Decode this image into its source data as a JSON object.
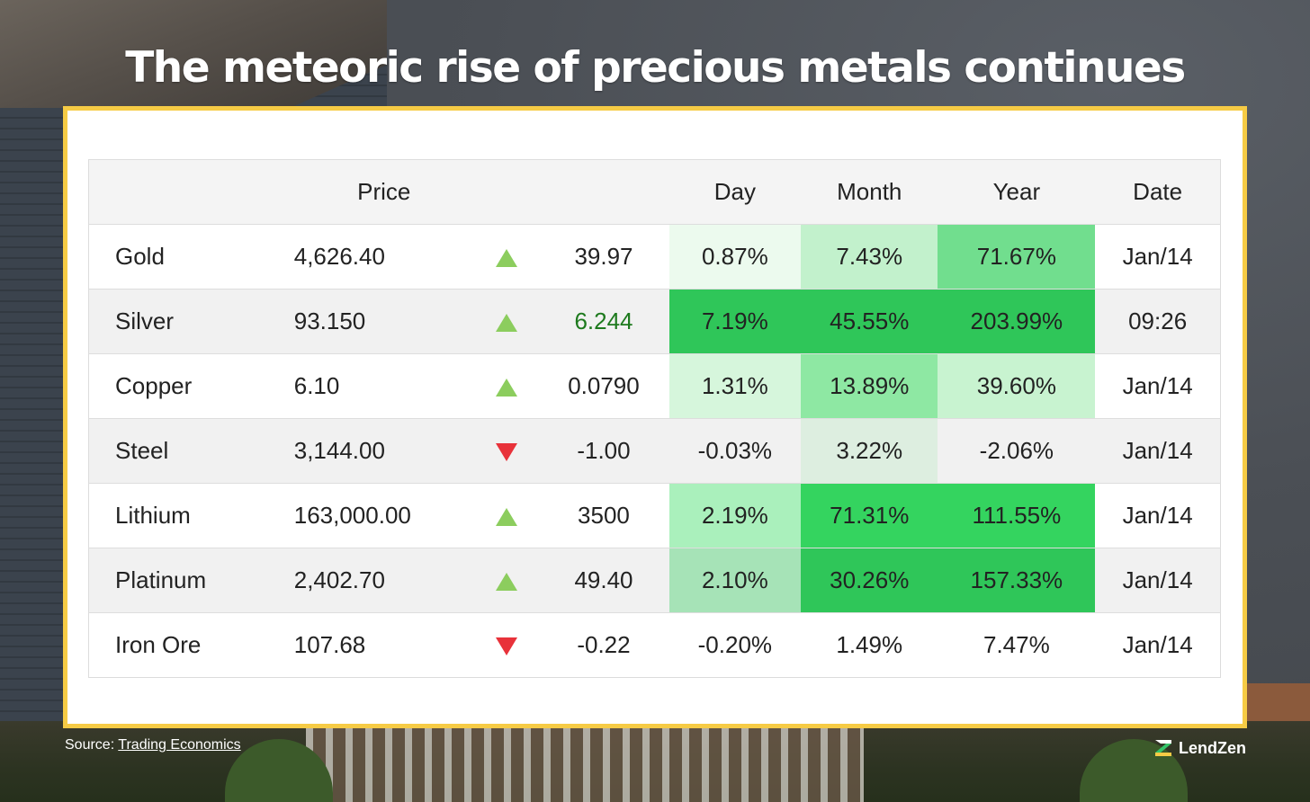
{
  "title": "The meteoric rise of precious metals continues",
  "source": {
    "label": "Source:",
    "link_text": "Trading Economics"
  },
  "brand": {
    "name": "LendZen"
  },
  "colors": {
    "frame": "#f6cb45",
    "arrow_up": "#8ccd5e",
    "arrow_down": "#e8323a"
  },
  "chart_data": {
    "type": "table",
    "headers": [
      "",
      "Price",
      "",
      "",
      "Day",
      "Month",
      "Year",
      "Date"
    ],
    "rows": [
      {
        "name": "Gold",
        "price": "4,626.40",
        "direction": "up",
        "change": "39.97",
        "day": "0.87%",
        "month": "7.43%",
        "year": "71.67%",
        "date": "Jan/14",
        "day_bg": "#ecfaee",
        "month_bg": "#c2f1cc",
        "year_bg": "#71de8e"
      },
      {
        "name": "Silver",
        "price": "93.150",
        "direction": "up",
        "change": "6.244",
        "day": "7.19%",
        "month": "45.55%",
        "year": "203.99%",
        "date": "09:26",
        "day_bg": "#2fc659",
        "month_bg": "#2fc659",
        "year_bg": "#2fc659",
        "change_highlight": true
      },
      {
        "name": "Copper",
        "price": "6.10",
        "direction": "up",
        "change": "0.0790",
        "day": "1.31%",
        "month": "13.89%",
        "year": "39.60%",
        "date": "Jan/14",
        "day_bg": "#d6f6dc",
        "month_bg": "#8ee8a3",
        "year_bg": "#c8f3d0"
      },
      {
        "name": "Steel",
        "price": "3,144.00",
        "direction": "down",
        "change": "-1.00",
        "day": "-0.03%",
        "month": "3.22%",
        "year": "-2.06%",
        "date": "Jan/14",
        "day_bg": "#f1f1f1",
        "month_bg": "#ddeee0",
        "year_bg": "#f1f1f1"
      },
      {
        "name": "Lithium",
        "price": "163,000.00",
        "direction": "up",
        "change": "3500",
        "day": "2.19%",
        "month": "71.31%",
        "year": "111.55%",
        "date": "Jan/14",
        "day_bg": "#aaf0bc",
        "month_bg": "#34d45f",
        "year_bg": "#34d45f"
      },
      {
        "name": "Platinum",
        "price": "2,402.70",
        "direction": "up",
        "change": "49.40",
        "day": "2.10%",
        "month": "30.26%",
        "year": "157.33%",
        "date": "Jan/14",
        "day_bg": "#a6e3b7",
        "month_bg": "#2fc659",
        "year_bg": "#2fc659"
      },
      {
        "name": "Iron Ore",
        "price": "107.68",
        "direction": "down",
        "change": "-0.22",
        "day": "-0.20%",
        "month": "1.49%",
        "year": "7.47%",
        "date": "Jan/14",
        "day_bg": "",
        "month_bg": "",
        "year_bg": ""
      }
    ]
  }
}
